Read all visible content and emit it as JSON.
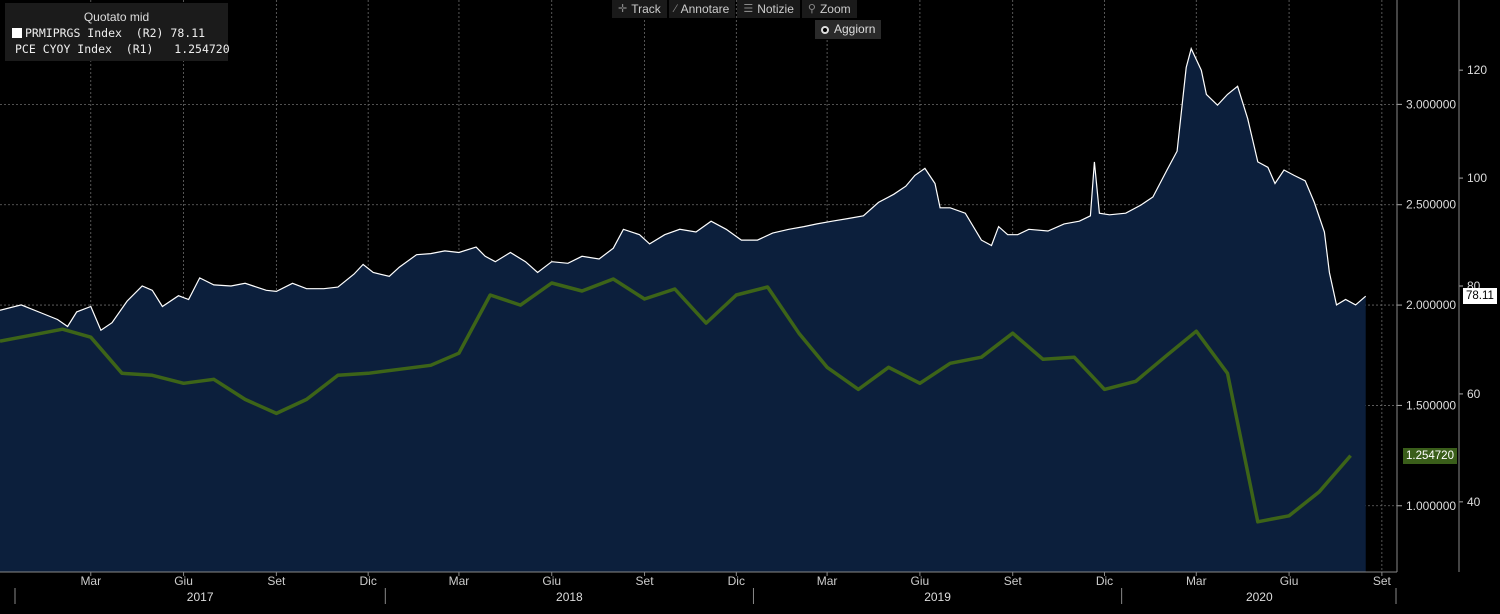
{
  "toolbar": {
    "track": "Track",
    "annotate": "Annotare",
    "news": "Notizie",
    "zoom": "Zoom",
    "refresh": "Aggiorn"
  },
  "legend": {
    "title": "Quotato mid",
    "rows": [
      {
        "label": "PRMIPRGS Index  (R2)",
        "value": "78.11",
        "color": "#ffffff"
      },
      {
        "label": "PCE CYOY Index  (R1)",
        "value": "1.254720",
        "color": "#3a5e1a"
      }
    ]
  },
  "colors": {
    "background": "#000000",
    "area_fill": "#0c1f3c",
    "white_line": "#ffffff",
    "green_line": "#3d6418",
    "grid": "#6a6a6a"
  },
  "chart_data": {
    "type": "line",
    "title": "",
    "x_axis": {
      "month_labels": [
        "Mar",
        "Giu",
        "Set",
        "Dic",
        "Mar",
        "Giu",
        "Set",
        "Dic",
        "Mar",
        "Giu",
        "Set",
        "Dic",
        "Mar",
        "Giu",
        "Set"
      ],
      "month_positions": [
        "2017-03",
        "2017-06",
        "2017-09",
        "2017-12",
        "2018-03",
        "2018-06",
        "2018-09",
        "2018-12",
        "2019-03",
        "2019-06",
        "2019-09",
        "2019-12",
        "2020-03",
        "2020-06",
        "2020-09"
      ],
      "year_labels": [
        "2017",
        "2018",
        "2019",
        "2020"
      ],
      "range": [
        "2016-12-15",
        "2020-09-30"
      ]
    },
    "y_axis_r1": {
      "ticks": [
        "3.000000",
        "2.500000",
        "2.000000",
        "1.500000",
        "1.000000"
      ],
      "tick_values": [
        3.0,
        2.5,
        2.0,
        1.5,
        1.0
      ],
      "range": [
        0.67,
        3.52
      ]
    },
    "y_axis_r2": {
      "ticks": [
        "120",
        "100",
        "80",
        "60",
        "40"
      ],
      "tick_values": [
        120,
        100,
        80,
        60,
        40
      ],
      "range": [
        27,
        133
      ]
    },
    "last_values": {
      "r1": "1.254720",
      "r2": "78.11"
    },
    "grid": true,
    "legend_position": "top-left",
    "series": [
      {
        "name": "PRMIPRGS Index  (R2)",
        "axis": "R2",
        "style": "area",
        "points": [
          [
            "2016-12-15",
            75.5
          ],
          [
            "2017-01-05",
            76.5
          ],
          [
            "2017-01-25",
            75.0
          ],
          [
            "2017-02-10",
            73.8
          ],
          [
            "2017-02-20",
            72.5
          ],
          [
            "2017-03-01",
            75.2
          ],
          [
            "2017-03-15",
            76.2
          ],
          [
            "2017-03-25",
            71.8
          ],
          [
            "2017-04-05",
            73.2
          ],
          [
            "2017-04-20",
            77.2
          ],
          [
            "2017-05-05",
            80.0
          ],
          [
            "2017-05-15",
            79.2
          ],
          [
            "2017-05-25",
            76.2
          ],
          [
            "2017-06-10",
            78.2
          ],
          [
            "2017-06-20",
            77.5
          ],
          [
            "2017-07-01",
            81.5
          ],
          [
            "2017-07-15",
            80.2
          ],
          [
            "2017-08-01",
            80.0
          ],
          [
            "2017-08-15",
            80.5
          ],
          [
            "2017-09-05",
            79.2
          ],
          [
            "2017-09-15",
            79.0
          ],
          [
            "2017-10-01",
            80.5
          ],
          [
            "2017-10-15",
            79.5
          ],
          [
            "2017-11-01",
            79.5
          ],
          [
            "2017-11-15",
            79.8
          ],
          [
            "2017-12-01",
            82.2
          ],
          [
            "2017-12-10",
            84.0
          ],
          [
            "2017-12-20",
            82.5
          ],
          [
            "2018-01-05",
            81.8
          ],
          [
            "2018-01-15",
            83.5
          ],
          [
            "2018-02-01",
            85.8
          ],
          [
            "2018-02-15",
            86.0
          ],
          [
            "2018-03-01",
            86.5
          ],
          [
            "2018-03-15",
            86.2
          ],
          [
            "2018-04-01",
            87.2
          ],
          [
            "2018-04-10",
            85.5
          ],
          [
            "2018-04-20",
            84.5
          ],
          [
            "2018-05-05",
            86.2
          ],
          [
            "2018-05-20",
            84.5
          ],
          [
            "2018-06-01",
            82.5
          ],
          [
            "2018-06-15",
            84.5
          ],
          [
            "2018-07-01",
            84.2
          ],
          [
            "2018-07-15",
            85.5
          ],
          [
            "2018-08-01",
            85.0
          ],
          [
            "2018-08-15",
            87.0
          ],
          [
            "2018-08-25",
            90.5
          ],
          [
            "2018-09-10",
            89.5
          ],
          [
            "2018-09-20",
            87.8
          ],
          [
            "2018-10-05",
            89.5
          ],
          [
            "2018-10-20",
            90.5
          ],
          [
            "2018-11-05",
            90.0
          ],
          [
            "2018-11-20",
            92.0
          ],
          [
            "2018-12-05",
            90.5
          ],
          [
            "2018-12-20",
            88.5
          ],
          [
            "2019-01-05",
            88.5
          ],
          [
            "2019-01-20",
            89.8
          ],
          [
            "2019-02-05",
            90.5
          ],
          [
            "2019-02-20",
            91.0
          ],
          [
            "2019-03-05",
            91.5
          ],
          [
            "2019-03-20",
            92.0
          ],
          [
            "2019-04-05",
            92.5
          ],
          [
            "2019-04-20",
            93.0
          ],
          [
            "2019-05-05",
            95.5
          ],
          [
            "2019-05-20",
            97.0
          ],
          [
            "2019-06-01",
            98.5
          ],
          [
            "2019-06-10",
            100.5
          ],
          [
            "2019-06-20",
            101.8
          ],
          [
            "2019-06-30",
            99.0
          ],
          [
            "2019-07-05",
            94.5
          ],
          [
            "2019-07-15",
            94.5
          ],
          [
            "2019-07-30",
            93.5
          ],
          [
            "2019-08-15",
            88.5
          ],
          [
            "2019-08-25",
            87.5
          ],
          [
            "2019-09-01",
            91.0
          ],
          [
            "2019-09-10",
            89.5
          ],
          [
            "2019-09-20",
            89.5
          ],
          [
            "2019-10-01",
            90.5
          ],
          [
            "2019-10-20",
            90.2
          ],
          [
            "2019-11-05",
            91.5
          ],
          [
            "2019-11-20",
            92.0
          ],
          [
            "2019-12-01",
            93.0
          ],
          [
            "2019-12-05",
            103.0
          ],
          [
            "2019-12-10",
            93.5
          ],
          [
            "2019-12-20",
            93.2
          ],
          [
            "2020-01-05",
            93.5
          ],
          [
            "2020-01-20",
            95.0
          ],
          [
            "2020-02-01",
            96.5
          ],
          [
            "2020-02-15",
            101.5
          ],
          [
            "2020-02-25",
            105.0
          ],
          [
            "2020-03-05",
            120.5
          ],
          [
            "2020-03-10",
            124.0
          ],
          [
            "2020-03-20",
            120.0
          ],
          [
            "2020-03-25",
            115.5
          ],
          [
            "2020-04-05",
            113.5
          ],
          [
            "2020-04-15",
            115.5
          ],
          [
            "2020-04-25",
            117.0
          ],
          [
            "2020-05-05",
            111.0
          ],
          [
            "2020-05-15",
            103.0
          ],
          [
            "2020-05-25",
            102.0
          ],
          [
            "2020-06-01",
            99.0
          ],
          [
            "2020-06-10",
            101.5
          ],
          [
            "2020-06-20",
            100.5
          ],
          [
            "2020-07-01",
            99.5
          ],
          [
            "2020-07-10",
            95.5
          ],
          [
            "2020-07-20",
            90.0
          ],
          [
            "2020-07-25",
            82.5
          ],
          [
            "2020-08-01",
            76.5
          ],
          [
            "2020-08-10",
            77.5
          ],
          [
            "2020-08-20",
            76.5
          ],
          [
            "2020-08-30",
            78.11
          ]
        ]
      },
      {
        "name": "PCE CYOY Index  (R1)",
        "axis": "R1",
        "style": "line",
        "points": [
          [
            "2016-12-15",
            1.82
          ],
          [
            "2017-01-15",
            1.85
          ],
          [
            "2017-02-15",
            1.88
          ],
          [
            "2017-03-15",
            1.84
          ],
          [
            "2017-04-15",
            1.66
          ],
          [
            "2017-05-15",
            1.65
          ],
          [
            "2017-06-15",
            1.61
          ],
          [
            "2017-07-15",
            1.63
          ],
          [
            "2017-08-15",
            1.53
          ],
          [
            "2017-09-15",
            1.46
          ],
          [
            "2017-10-15",
            1.53
          ],
          [
            "2017-11-15",
            1.65
          ],
          [
            "2017-12-15",
            1.66
          ],
          [
            "2018-01-15",
            1.68
          ],
          [
            "2018-02-15",
            1.7
          ],
          [
            "2018-03-15",
            1.76
          ],
          [
            "2018-04-15",
            2.05
          ],
          [
            "2018-05-15",
            2.0
          ],
          [
            "2018-06-15",
            2.11
          ],
          [
            "2018-07-15",
            2.07
          ],
          [
            "2018-08-15",
            2.13
          ],
          [
            "2018-09-15",
            2.03
          ],
          [
            "2018-10-15",
            2.08
          ],
          [
            "2018-11-15",
            1.91
          ],
          [
            "2018-12-15",
            2.05
          ],
          [
            "2019-01-15",
            2.09
          ],
          [
            "2019-02-15",
            1.86
          ],
          [
            "2019-03-15",
            1.69
          ],
          [
            "2019-04-15",
            1.58
          ],
          [
            "2019-05-15",
            1.69
          ],
          [
            "2019-06-15",
            1.61
          ],
          [
            "2019-07-15",
            1.71
          ],
          [
            "2019-08-15",
            1.74
          ],
          [
            "2019-09-15",
            1.86
          ],
          [
            "2019-10-15",
            1.73
          ],
          [
            "2019-11-15",
            1.74
          ],
          [
            "2019-12-15",
            1.58
          ],
          [
            "2020-01-15",
            1.62
          ],
          [
            "2020-02-15",
            1.75
          ],
          [
            "2020-03-15",
            1.87
          ],
          [
            "2020-04-15",
            1.66
          ],
          [
            "2020-05-15",
            0.92
          ],
          [
            "2020-06-15",
            0.95
          ],
          [
            "2020-07-15",
            1.07
          ],
          [
            "2020-08-15",
            1.25
          ]
        ]
      }
    ]
  }
}
